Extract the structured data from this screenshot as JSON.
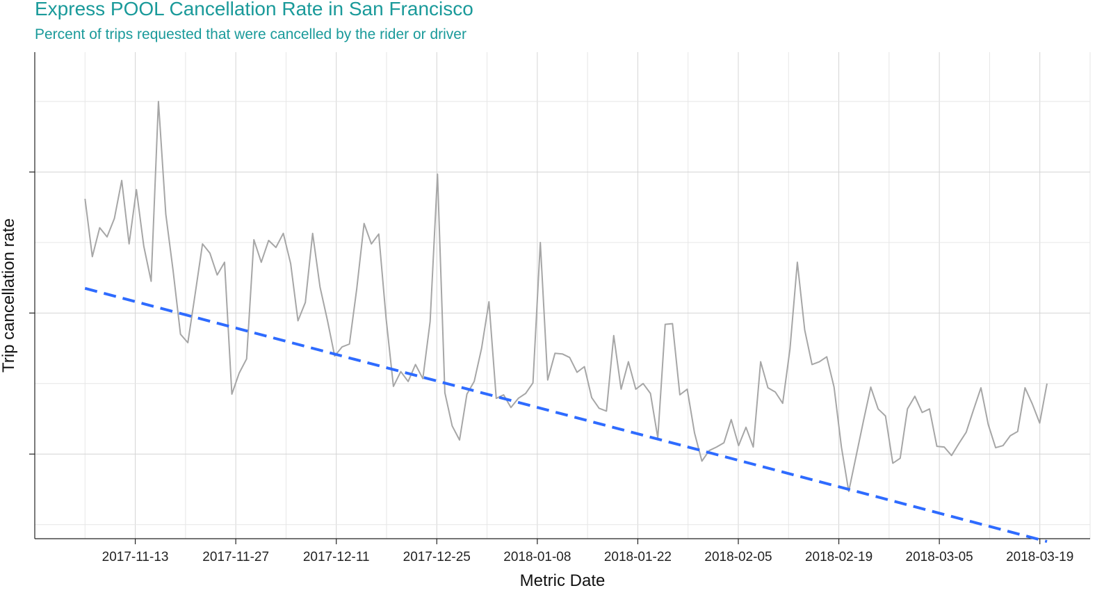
{
  "chart_data": {
    "type": "line",
    "title": "Express POOL Cancellation Rate in San Francisco",
    "subtitle": "Percent of trips requested that were cancelled by the rider or driver",
    "xlabel": "Metric Date",
    "ylabel": "Trip cancellation rate",
    "x_start": "2017-11-06",
    "x_end": "2018-03-20",
    "xlim": [
      "2017-10-30",
      "2018-03-26"
    ],
    "ylim": [
      -0.2,
      6.7
    ],
    "x_tick_labels": [
      "2017-11-13",
      "2017-11-27",
      "2017-12-11",
      "2017-12-25",
      "2018-01-08",
      "2018-01-22",
      "2018-02-05",
      "2018-02-19",
      "2018-03-05",
      "2018-03-19"
    ],
    "y_ticks_unlabeled": [
      1,
      3,
      5
    ],
    "grid": true,
    "series": [
      {
        "color": "#a6a6a6",
        "values": [
          4.62,
          3.8,
          4.21,
          4.08,
          4.34,
          4.88,
          3.98,
          4.75,
          3.95,
          3.45,
          6.0,
          4.4,
          3.6,
          2.7,
          2.58,
          3.27,
          3.98,
          3.85,
          3.54,
          3.72,
          1.85,
          2.15,
          2.35,
          4.04,
          3.72,
          4.03,
          3.93,
          4.13,
          3.7,
          2.89,
          3.15,
          4.13,
          3.37,
          2.9,
          2.39,
          2.52,
          2.56,
          3.34,
          4.27,
          3.98,
          4.12,
          2.92,
          1.96,
          2.17,
          2.03,
          2.27,
          2.07,
          2.88,
          4.97,
          1.87,
          1.4,
          1.2,
          1.85,
          2.03,
          2.5,
          3.16,
          1.79,
          1.84,
          1.66,
          1.79,
          1.86,
          2.01,
          4.0,
          2.05,
          2.43,
          2.42,
          2.37,
          2.16,
          2.24,
          1.8,
          1.65,
          1.61,
          2.68,
          1.92,
          2.31,
          1.92,
          2.0,
          1.86,
          1.23,
          2.84,
          2.85,
          1.84,
          1.92,
          1.3,
          0.9,
          1.05,
          1.1,
          1.16,
          1.49,
          1.12,
          1.38,
          1.1,
          2.31,
          1.94,
          1.88,
          1.72,
          2.49,
          3.72,
          2.76,
          2.27,
          2.31,
          2.38,
          1.95,
          1.1,
          0.47,
          0.97,
          1.47,
          1.95,
          1.64,
          1.54,
          0.87,
          0.94,
          1.64,
          1.82,
          1.59,
          1.64,
          1.11,
          1.1,
          0.98,
          1.15,
          1.31,
          1.63,
          1.94,
          1.42,
          1.09,
          1.12,
          1.26,
          1.32,
          1.94,
          1.71,
          1.44,
          2.0
        ]
      },
      {
        "kind": "linear trend",
        "color": "#2e6bff",
        "start_value": 3.35,
        "end_value": -0.24
      }
    ]
  }
}
